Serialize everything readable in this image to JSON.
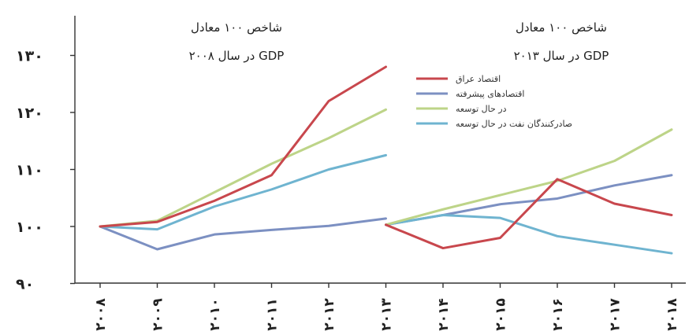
{
  "chart_data": {
    "type": "line",
    "title": "",
    "xlabel": "",
    "ylabel": "",
    "ylim": [
      90,
      132
    ],
    "yticks": [
      90,
      100,
      110,
      120,
      130
    ],
    "ytick_labels": [
      "۹۰",
      "۱۰۰",
      "۱۱۰",
      "۱۲۰",
      "۱۳۰"
    ],
    "categories": [
      "2008",
      "2009",
      "2010",
      "2011",
      "2012",
      "2013",
      "2014",
      "2015",
      "2016",
      "2017",
      "2018"
    ],
    "category_labels": [
      "۲۰۰۸",
      "۲۰۰۹",
      "۲۰۱۰",
      "۲۰۱۱",
      "۲۰۱۲",
      "۲۰۱۳",
      "۲۰۱۴",
      "۲۰۱۵",
      "۲۰۱۶",
      "۲۰۱۷",
      "۲۰۱۸"
    ],
    "grid": false,
    "legend_position": "top-right",
    "annotations": [
      {
        "line1": "شاخص ۱۰۰ معادل",
        "line2": "GDP در سال ۲۰۰۸",
        "panel": "left"
      },
      {
        "line1": "شاخص ۱۰۰ معادل",
        "line2": "GDP در سال ۲۰۱۳",
        "panel": "right"
      }
    ],
    "series": [
      {
        "name": "اقتصاد عراق",
        "color": "#c8474d",
        "segments": [
          {
            "x": [
              "2008",
              "2009",
              "2010",
              "2011",
              "2012",
              "2013"
            ],
            "values": [
              100,
              100.8,
              104.5,
              109,
              122,
              128
            ]
          },
          {
            "x": [
              "2013",
              "2014",
              "2015",
              "2016",
              "2017",
              "2018"
            ],
            "values": [
              100.3,
              96.2,
              98,
              108.3,
              104,
              102
            ]
          }
        ]
      },
      {
        "name": "اقتصادهای پیشرفته",
        "color": "#7c90c2",
        "segments": [
          {
            "x": [
              "2008",
              "2009",
              "2010",
              "2011",
              "2012",
              "2013"
            ],
            "values": [
              100,
              96,
              98.6,
              99.4,
              100.1,
              101.4
            ]
          },
          {
            "x": [
              "2013",
              "2014",
              "2015",
              "2016",
              "2017",
              "2018"
            ],
            "values": [
              100.3,
              102,
              103.9,
              104.9,
              107.2,
              109
            ]
          }
        ]
      },
      {
        "name": "در حال توسعه",
        "color": "#bdd488",
        "segments": [
          {
            "x": [
              "2008",
              "2009",
              "2010",
              "2011",
              "2012",
              "2013"
            ],
            "values": [
              100,
              101,
              106,
              111,
              115.5,
              120.5
            ]
          },
          {
            "x": [
              "2013",
              "2014",
              "2015",
              "2016",
              "2017",
              "2018"
            ],
            "values": [
              100.3,
              103,
              105.5,
              108,
              111.5,
              117
            ]
          }
        ]
      },
      {
        "name": "صادرکنندگان نفت در حال توسعه",
        "color": "#6fb4d0",
        "segments": [
          {
            "x": [
              "2008",
              "2009",
              "2010",
              "2011",
              "2012",
              "2013"
            ],
            "values": [
              100,
              99.5,
              103.5,
              106.5,
              110,
              112.5
            ]
          },
          {
            "x": [
              "2013",
              "2014",
              "2015",
              "2016",
              "2017",
              "2018"
            ],
            "values": [
              100.3,
              102,
              101.5,
              98.3,
              96.8,
              95.3
            ]
          }
        ]
      }
    ]
  }
}
